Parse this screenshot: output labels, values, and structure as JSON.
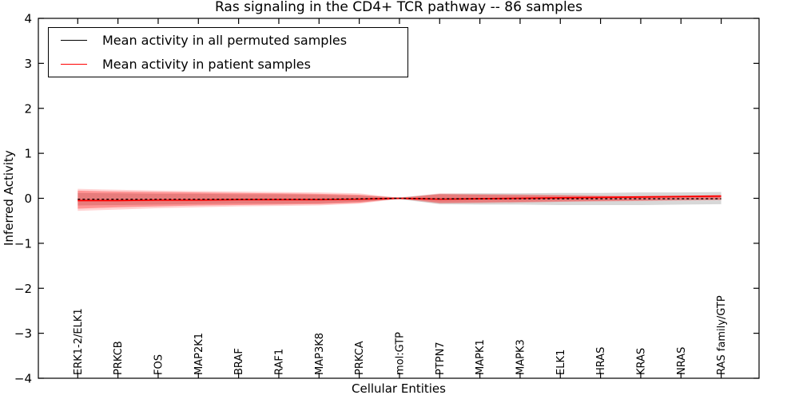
{
  "chart_data": {
    "type": "line",
    "title": "Ras signaling in the CD4+ TCR pathway -- 86 samples",
    "xlabel": "Cellular Entities",
    "ylabel": "Inferred Activity",
    "ylim": [
      -4,
      4
    ],
    "yticks": [
      -4,
      -3,
      -2,
      -1,
      0,
      1,
      2,
      3,
      4
    ],
    "grid": false,
    "legend_position": "upper left",
    "categories": [
      "ERK1-2/ELK1",
      "PRKCB",
      "FOS",
      "MAP2K1",
      "BRAF",
      "RAF1",
      "MAP3K8",
      "PRKCA",
      "mol:GTP",
      "PTPN7",
      "MAPK1",
      "MAPK3",
      "ELK1",
      "HRAS",
      "KRAS",
      "NRAS",
      "RAS family/GTP"
    ],
    "series": [
      {
        "name": "Mean activity in all permuted samples",
        "color": "#000000",
        "style": "dashed",
        "values": [
          -0.02,
          -0.02,
          -0.02,
          -0.02,
          -0.02,
          -0.02,
          -0.02,
          -0.01,
          0.0,
          -0.01,
          -0.01,
          -0.01,
          -0.01,
          -0.01,
          -0.01,
          -0.01,
          -0.01
        ]
      },
      {
        "name": "Mean activity in patient samples",
        "color": "#ff0000",
        "style": "solid",
        "values": [
          -0.05,
          -0.05,
          -0.04,
          -0.04,
          -0.03,
          -0.03,
          -0.03,
          -0.02,
          0.0,
          -0.02,
          -0.01,
          0.0,
          0.01,
          0.02,
          0.03,
          0.04,
          0.05
        ]
      }
    ],
    "bands": [
      {
        "name": "permuted-std-band",
        "color": "#a0a0a0",
        "opacity": 0.42,
        "upper": [
          0.12,
          0.11,
          0.1,
          0.1,
          0.09,
          0.09,
          0.08,
          0.06,
          0.02,
          0.1,
          0.11,
          0.11,
          0.12,
          0.12,
          0.13,
          0.13,
          0.14
        ],
        "lower": [
          -0.16,
          -0.15,
          -0.14,
          -0.13,
          -0.12,
          -0.12,
          -0.11,
          -0.08,
          -0.02,
          -0.13,
          -0.14,
          -0.14,
          -0.15,
          -0.15,
          -0.15,
          -0.14,
          -0.13
        ]
      },
      {
        "name": "patient-std-band-outer",
        "color": "#ff0000",
        "opacity": 0.17,
        "upper": [
          0.21,
          0.19,
          0.17,
          0.16,
          0.15,
          0.14,
          0.13,
          0.11,
          0.01,
          0.11,
          0.1,
          0.09,
          0.08,
          0.06,
          0.05,
          0.05,
          0.06
        ],
        "lower": [
          -0.28,
          -0.25,
          -0.22,
          -0.2,
          -0.18,
          -0.17,
          -0.16,
          -0.12,
          -0.01,
          -0.12,
          -0.11,
          -0.1,
          -0.08,
          -0.07,
          -0.06,
          -0.05,
          -0.04
        ]
      },
      {
        "name": "patient-std-band-inner",
        "color": "#ff0000",
        "opacity": 0.3,
        "upper": [
          0.17,
          0.15,
          0.14,
          0.13,
          0.12,
          0.11,
          0.1,
          0.08,
          0.005,
          0.09,
          0.08,
          0.07,
          0.06,
          0.05,
          0.04,
          0.04,
          0.05
        ],
        "lower": [
          -0.23,
          -0.2,
          -0.18,
          -0.16,
          -0.15,
          -0.14,
          -0.13,
          -0.1,
          -0.005,
          -0.1,
          -0.09,
          -0.08,
          -0.07,
          -0.06,
          -0.05,
          -0.04,
          -0.03
        ]
      }
    ]
  },
  "frame": {
    "background": "#ffffff",
    "axis_color": "#000000",
    "tick_label_color": "#000000"
  }
}
